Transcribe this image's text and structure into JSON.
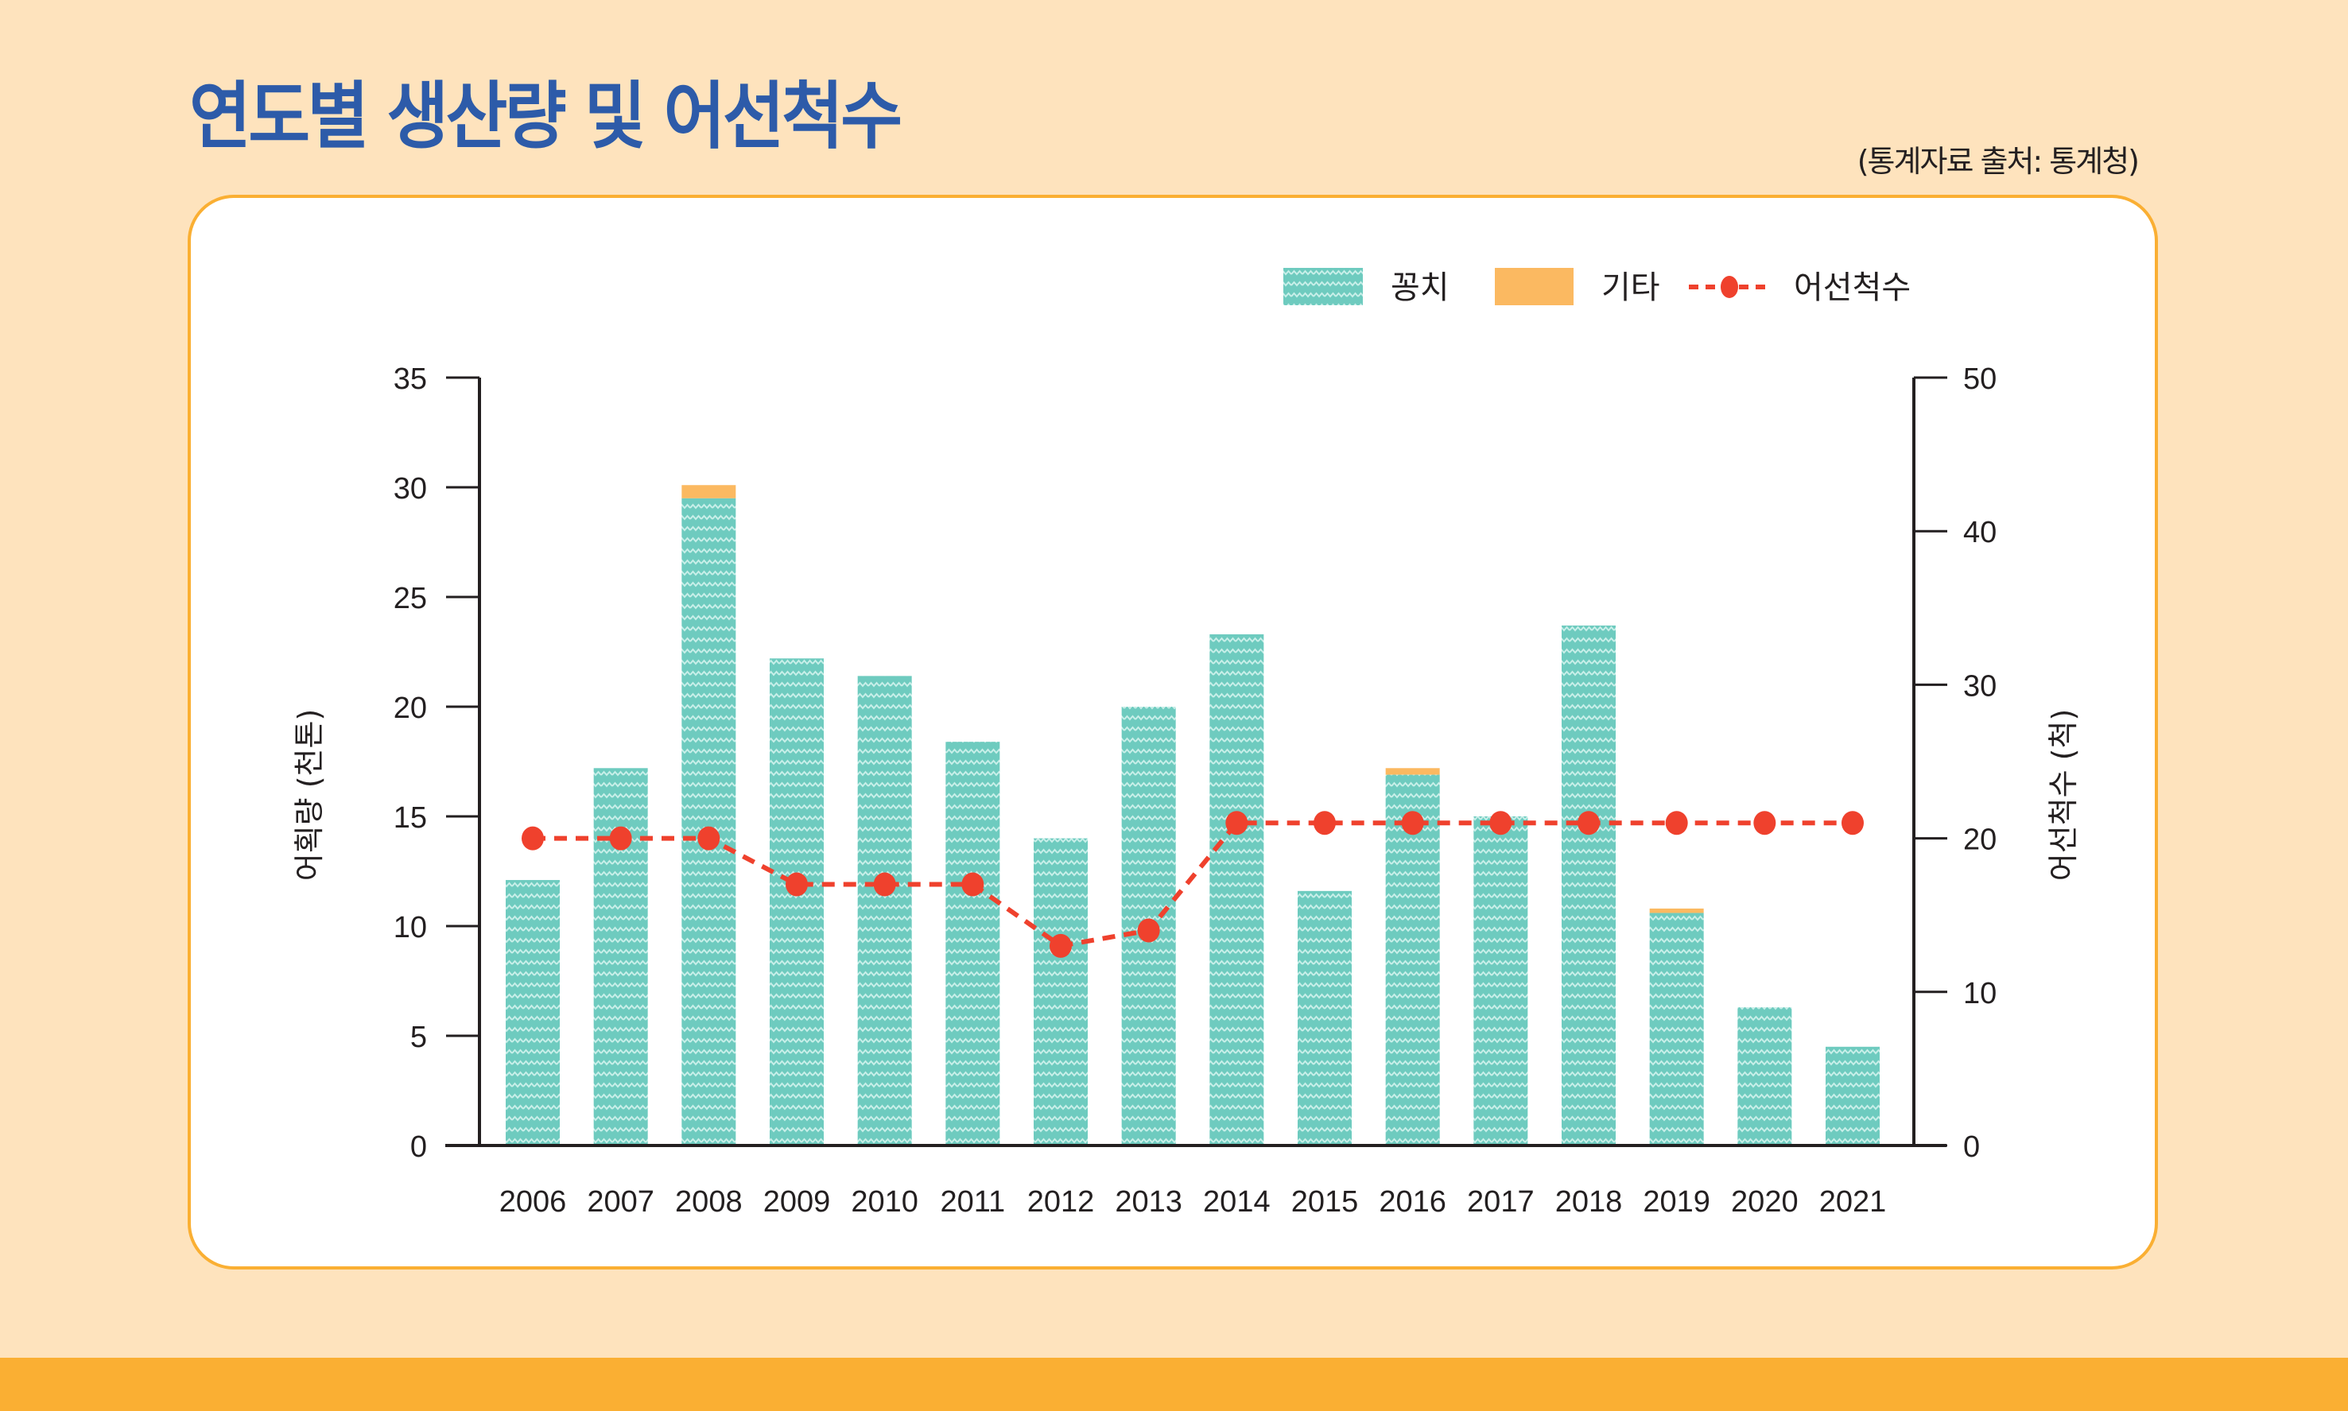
{
  "header": {
    "title": "연도별 생산량 및 어선척수",
    "source": "(통계자료 출처: 통계청)"
  },
  "colors": {
    "background": "#fee3bd",
    "title": "#2d5ba9",
    "card_border": "#faaf33",
    "bottom_band": "#faaf33",
    "bar_main": "#6ecbbf",
    "bar_pattern": "#c8efe9",
    "bar_other": "#fbb961",
    "line": "#ef412d",
    "axis": "#231f20"
  },
  "chart_data": {
    "type": "bar",
    "title": "연도별 생산량 및 어선척수",
    "categories": [
      "2006",
      "2007",
      "2008",
      "2009",
      "2010",
      "2011",
      "2012",
      "2013",
      "2014",
      "2015",
      "2016",
      "2017",
      "2018",
      "2019",
      "2020",
      "2021"
    ],
    "series": [
      {
        "name": "꽁치",
        "type": "bar",
        "stack": "production",
        "axis": "left",
        "pattern": "zigzag",
        "values": [
          12.1,
          17.2,
          29.5,
          22.2,
          21.4,
          18.4,
          14.0,
          20.0,
          23.3,
          11.6,
          16.9,
          15.0,
          23.7,
          10.6,
          6.3,
          4.5
        ]
      },
      {
        "name": "기타",
        "type": "bar",
        "stack": "production",
        "axis": "left",
        "values": [
          0,
          0,
          0.6,
          0,
          0,
          0,
          0,
          0,
          0,
          0,
          0.3,
          0,
          0,
          0.2,
          0,
          0
        ]
      },
      {
        "name": "어선척수",
        "type": "line",
        "style": "dashed",
        "marker": "circle",
        "axis": "right",
        "values": [
          20,
          20,
          20,
          17,
          17,
          17,
          13,
          14,
          21,
          21,
          21,
          21,
          21,
          21,
          21,
          21
        ]
      }
    ],
    "ylabel": "어획량 (천톤)",
    "ylim": [
      0,
      35
    ],
    "yticks": [
      0,
      5,
      10,
      15,
      20,
      25,
      30,
      35
    ],
    "y2label": "어선척수 (척)",
    "y2lim": [
      0,
      50
    ],
    "y2ticks": [
      0,
      10,
      20,
      30,
      40,
      50
    ],
    "xlabel": "",
    "grid": false,
    "legend_position": "top-right"
  }
}
